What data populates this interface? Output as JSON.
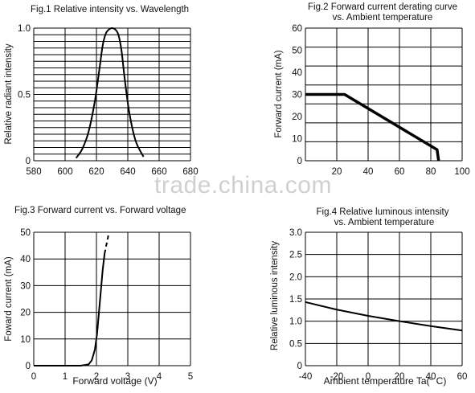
{
  "watermark": "trade.china.com",
  "chart_data": [
    {
      "type": "line",
      "title": "Fig.1 Relative intensity vs. Wavelength",
      "ylabel": "Relative radiant intensity",
      "xlabel": "",
      "x_ticks": [
        "580",
        "600",
        "620",
        "640",
        "660",
        "680"
      ],
      "y_ticks": [
        "0",
        "0.5",
        "1.0"
      ],
      "xlim": [
        580,
        680
      ],
      "ylim": [
        0,
        1.0
      ],
      "grid": true,
      "series": [
        {
          "x": [
            607,
            611,
            615,
            619,
            622,
            624,
            626,
            628,
            630,
            632,
            634,
            636,
            638,
            641,
            645,
            650
          ],
          "y": [
            0.02,
            0.09,
            0.22,
            0.45,
            0.7,
            0.87,
            0.96,
            0.99,
            1.0,
            0.99,
            0.95,
            0.83,
            0.62,
            0.36,
            0.15,
            0.03
          ]
        }
      ]
    },
    {
      "type": "line",
      "title": "Fig.2 Forward current derating curve",
      "subtitle": "vs. Ambient temperature",
      "ylabel": "Forward current (mA)",
      "xlabel": "",
      "x_ticks": [
        "20",
        "40",
        "60",
        "80",
        "100"
      ],
      "y_ticks": [
        "0",
        "10",
        "20",
        "30",
        "40",
        "50",
        "60"
      ],
      "xlim": [
        0,
        100
      ],
      "ylim": [
        0,
        60
      ],
      "grid": true,
      "series": [
        {
          "x": [
            0,
            25,
            84,
            85
          ],
          "y": [
            30,
            30,
            5,
            0
          ]
        }
      ]
    },
    {
      "type": "line",
      "title": "Fig.3 Forward current vs. Forward voltage",
      "ylabel": "Foward current (mA)",
      "xlabel": "Forward voltage (V)",
      "x_ticks": [
        "0",
        "1",
        "2",
        "3",
        "4",
        "5"
      ],
      "y_ticks": [
        "0",
        "10",
        "20",
        "30",
        "40",
        "50"
      ],
      "xlim": [
        0,
        5
      ],
      "ylim": [
        0,
        50
      ],
      "grid": true,
      "series": [
        {
          "x": [
            0,
            1.5,
            1.75,
            1.85,
            1.95,
            2.02,
            2.08,
            2.14,
            2.2,
            2.26
          ],
          "y": [
            0,
            0,
            0.5,
            2,
            6,
            12,
            20,
            28,
            36,
            42
          ],
          "dash": false
        },
        {
          "x": [
            2.26,
            2.33,
            2.4
          ],
          "y": [
            42,
            46,
            50
          ],
          "dash": true
        }
      ]
    },
    {
      "type": "line",
      "title": "Fig.4 Relative luminous intensity",
      "subtitle": "vs. Ambient temperature",
      "ylabel": "Relative luminous intensity",
      "xlabel": "Ambient temperature Ta(° C)",
      "x_ticks": [
        "-40",
        "-20",
        "0",
        "20",
        "40",
        "60"
      ],
      "y_ticks": [
        "0",
        "0.5",
        "1.0",
        "1.5",
        "2.0",
        "2.5",
        "3.0"
      ],
      "xlim": [
        -40,
        60
      ],
      "ylim": [
        0,
        3.0
      ],
      "grid": true,
      "series": [
        {
          "x": [
            -40,
            -20,
            0,
            20,
            40,
            60
          ],
          "y": [
            1.43,
            1.26,
            1.12,
            1.0,
            0.89,
            0.79
          ]
        }
      ]
    }
  ]
}
